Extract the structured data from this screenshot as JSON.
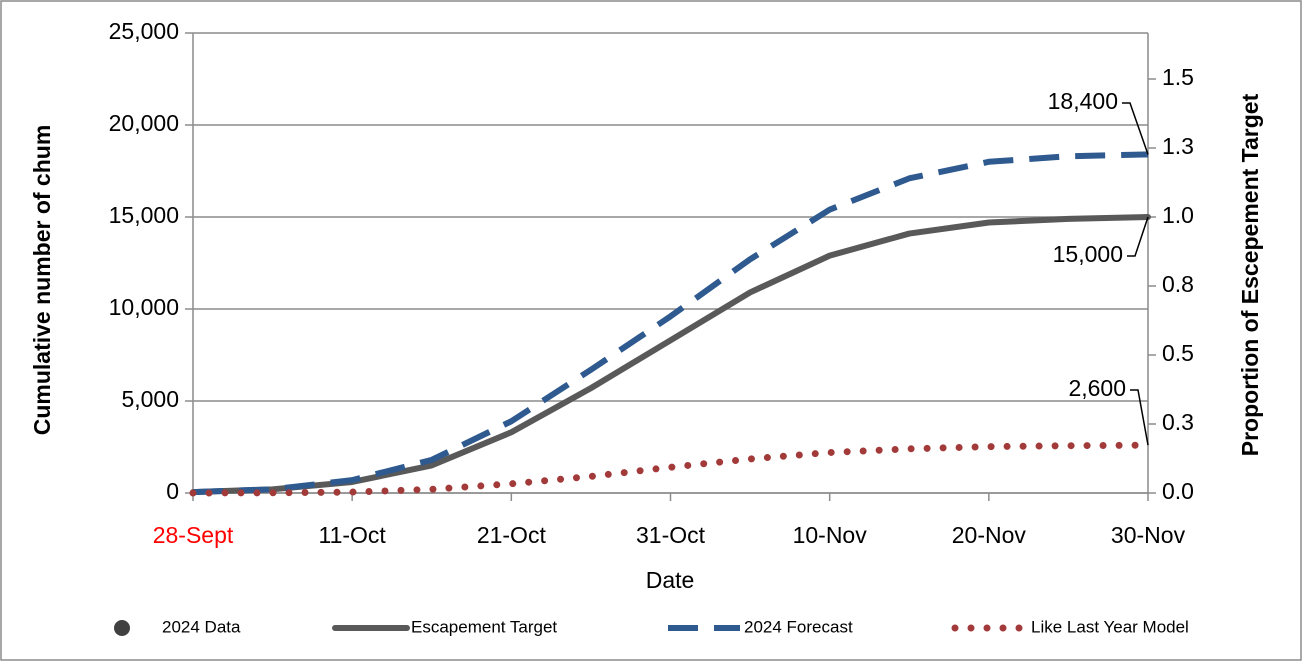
{
  "chart_data": {
    "type": "line",
    "xlabel": "Date",
    "ylabel": "Cumulative number of chum",
    "y2label": "Proportion of Escepement Target",
    "x": [
      0,
      5,
      10,
      15,
      20,
      25,
      30,
      35,
      40,
      45,
      50,
      55,
      60
    ],
    "xlim": [
      0,
      60
    ],
    "xticks": [
      {
        "value": 0,
        "label": "28-Sept",
        "color": "#ff0000"
      },
      {
        "value": 10,
        "label": "11-Oct"
      },
      {
        "value": 20,
        "label": "21-Oct"
      },
      {
        "value": 30,
        "label": "31-Oct"
      },
      {
        "value": 40,
        "label": "10-Nov"
      },
      {
        "value": 50,
        "label": "20-Nov"
      },
      {
        "value": 60,
        "label": "30-Nov"
      }
    ],
    "ylim": [
      0,
      25000
    ],
    "yticks": [
      {
        "value": 0,
        "label": "0"
      },
      {
        "value": 5000,
        "label": "5,000"
      },
      {
        "value": 10000,
        "label": "10,000"
      },
      {
        "value": 15000,
        "label": "15,000"
      },
      {
        "value": 20000,
        "label": "20,000"
      },
      {
        "value": 25000,
        "label": "25,000"
      }
    ],
    "y2lim": [
      0,
      1.6667
    ],
    "y2ticks": [
      {
        "value": 0,
        "label": "0.0"
      },
      {
        "value": 0.25,
        "label": "0.3"
      },
      {
        "value": 0.5,
        "label": "0.5"
      },
      {
        "value": 0.75,
        "label": "0.8"
      },
      {
        "value": 1,
        "label": "1.0"
      },
      {
        "value": 1.25,
        "label": "1.3"
      },
      {
        "value": 1.5,
        "label": "1.5"
      }
    ],
    "grid": true,
    "legend": "bottom",
    "series": [
      {
        "name": "2024 Data",
        "color": "#404040",
        "style": "marker",
        "values": [
          null,
          null,
          null,
          null,
          null,
          null,
          null,
          null,
          null,
          null,
          null,
          null,
          null
        ]
      },
      {
        "name": "Escapement Target",
        "color": "#595959",
        "style": "solid",
        "values": [
          50,
          200,
          600,
          1500,
          3300,
          5700,
          8300,
          10900,
          12900,
          14100,
          14700,
          14900,
          15000
        ]
      },
      {
        "name": "2024 Forecast",
        "color": "#2f5a8f",
        "style": "dashed",
        "values": [
          50,
          200,
          700,
          1800,
          3900,
          6700,
          9600,
          12700,
          15400,
          17100,
          18000,
          18300,
          18400
        ]
      },
      {
        "name": "Like Last Year Model",
        "color": "#a33a3a",
        "style": "dotted",
        "values": [
          0,
          10,
          50,
          200,
          500,
          900,
          1400,
          1850,
          2200,
          2400,
          2520,
          2570,
          2600
        ]
      }
    ],
    "annotations": [
      {
        "text": "18,400",
        "value": 18400
      },
      {
        "text": "15,000",
        "value": 15000
      },
      {
        "text": "2,600",
        "value": 2600
      }
    ]
  }
}
